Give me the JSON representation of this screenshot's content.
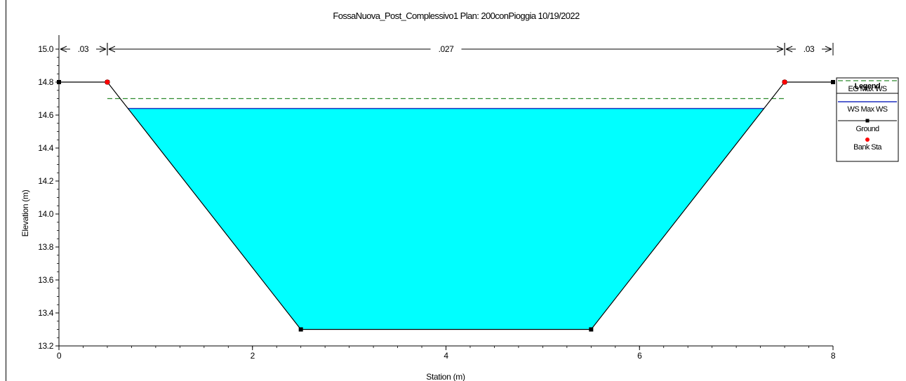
{
  "chart_data": {
    "type": "line",
    "title": "FossaNuova_Post_Complessivo1      Plan: 200conPioggia    10/19/2022",
    "xlabel": "Station (m)",
    "ylabel": "Elevation (m)",
    "xlim": [
      0,
      8
    ],
    "ylim": [
      13.2,
      15.0
    ],
    "xticks": [
      "0",
      "2",
      "4",
      "6",
      "8"
    ],
    "yticks": [
      "13.2",
      "13.4",
      "13.6",
      "13.8",
      "14.0",
      "14.2",
      "14.4",
      "14.6",
      "14.8",
      "15.0"
    ],
    "manning_n": [
      {
        "label": ".03",
        "from": 0,
        "to": 0.5
      },
      {
        "label": ".027",
        "from": 0.5,
        "to": 7.5
      },
      {
        "label": ".03",
        "from": 7.5,
        "to": 8
      }
    ],
    "series": [
      {
        "name": "EG Max WS",
        "color": "#2e8b2e",
        "style": "dashed",
        "x": [
          0.5,
          7.5
        ],
        "y": [
          14.7,
          14.7
        ]
      },
      {
        "name": "WS Max WS",
        "color": "#1f2fbf",
        "style": "solid",
        "x": [
          0.71,
          7.29
        ],
        "y": [
          14.64,
          14.64
        ]
      },
      {
        "name": "Ground",
        "color": "#000000",
        "style": "solid-square-markers",
        "x": [
          0,
          0.5,
          2.5,
          5.5,
          7.5,
          8
        ],
        "y": [
          14.8,
          14.8,
          13.3,
          13.3,
          14.8,
          14.8
        ]
      },
      {
        "name": "Bank Sta",
        "color": "#ff0000",
        "style": "circle-markers",
        "x": [
          0.5,
          7.5
        ],
        "y": [
          14.8,
          14.8
        ]
      }
    ],
    "water_fill_color": "#00ffff",
    "grid": false,
    "legend": {
      "title": "Legend",
      "placement": "right"
    }
  }
}
